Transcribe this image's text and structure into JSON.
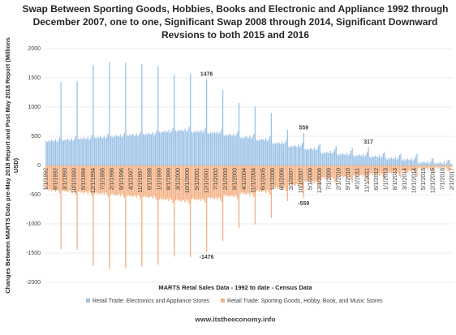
{
  "chart_data": {
    "type": "bar",
    "title": [
      "Swap Between Sporting Goods, Hobbies, Books and Electronic and Appliance 1992 through",
      "December 2007, one to one, Significant Swap 2008 through 2014, Significant Downward",
      "Revsions to both 2015 and 2016"
    ],
    "y_label": [
      "Changes Between MARTS Data pre-May 2018 Report and Post May 2018 Report (Millions",
      "USD)"
    ],
    "x_label": "MARTS Retal Sales Data - 1992 to date - Census Data",
    "footer": "www.itstheeconomy.info",
    "ylim": [
      -2000,
      2000
    ],
    "yticks": [
      -2000,
      -1500,
      -1000,
      -500,
      0,
      500,
      1000,
      1500,
      2000
    ],
    "grid": true,
    "legend": "bottom",
    "categories": [
      "1/1/1992",
      null,
      null,
      null,
      null,
      null,
      null,
      "8/1/1992",
      null,
      null,
      null,
      null,
      null,
      null,
      "3/1/1993",
      null,
      null,
      null,
      null,
      null,
      null,
      "10/1/1993",
      null,
      null,
      null,
      null,
      null,
      null,
      "5/1/1994",
      null,
      null,
      null,
      null,
      null,
      null,
      "12/1/1994",
      null,
      null,
      null,
      null,
      null,
      null,
      "7/1/1995",
      null,
      null,
      null,
      null,
      null,
      null,
      "2/1/1996",
      null,
      null,
      null,
      null,
      null,
      null,
      "9/1/1996",
      null,
      null,
      null,
      null,
      null,
      null,
      "4/1/1997",
      null,
      null,
      null,
      null,
      null,
      null,
      "11/1/1997",
      null,
      null,
      null,
      null,
      null,
      null,
      "6/1/1998",
      null,
      null,
      null,
      null,
      null,
      null,
      "1/1/1999",
      null,
      null,
      null,
      null,
      null,
      null,
      "8/1/1999",
      null,
      null,
      null,
      null,
      null,
      null,
      "3/1/2000",
      null,
      null,
      null,
      null,
      null,
      null,
      "10/1/2000",
      null,
      null,
      null,
      null,
      null,
      null,
      "5/1/2001",
      null,
      null,
      null,
      null,
      null,
      null,
      "12/1/2001",
      null,
      null,
      null,
      null,
      null,
      null,
      "7/1/2002",
      null,
      null,
      null,
      null,
      null,
      null,
      "2/1/2003",
      null,
      null,
      null,
      null,
      null,
      null,
      "9/1/2003",
      null,
      null,
      null,
      null,
      null,
      null,
      "4/1/2004",
      null,
      null,
      null,
      null,
      null,
      null,
      "11/1/2004",
      null,
      null,
      null,
      null,
      null,
      null,
      "6/1/2005",
      null,
      null,
      null,
      null,
      null,
      null,
      "1/1/2006",
      null,
      null,
      null,
      null,
      null,
      null,
      "8/1/2006",
      null,
      null,
      null,
      null,
      null,
      null,
      "3/1/2007",
      null,
      null,
      null,
      null,
      null,
      null,
      "10/1/2007",
      null,
      null,
      null,
      null,
      null,
      null,
      "5/1/2008",
      null,
      null,
      null,
      null,
      null,
      null,
      "12/1/2008",
      null,
      null,
      null,
      null,
      null,
      null,
      "7/1/2009",
      null,
      null,
      null,
      null,
      null,
      null,
      "2/1/2010",
      null,
      null,
      null,
      null,
      null,
      null,
      "9/1/2010",
      null,
      null,
      null,
      null,
      null,
      null,
      "4/1/2011",
      null,
      null,
      null,
      null,
      null,
      null,
      "11/1/2011",
      null,
      null,
      null,
      null,
      null,
      null,
      "6/1/2012",
      null,
      null,
      null,
      null,
      null,
      null,
      "1/1/2013",
      null,
      null,
      null,
      null,
      null,
      null,
      "8/1/2013",
      null,
      null,
      null,
      null,
      null,
      null,
      "3/1/2014",
      null,
      null,
      null,
      null,
      null,
      null,
      "10/1/2014",
      null,
      null,
      null,
      null,
      null,
      null,
      "5/1/2015",
      null,
      null,
      null,
      null,
      null,
      null,
      "12/1/2015",
      null,
      null,
      null,
      null,
      null,
      null,
      "7/1/2016",
      null,
      null,
      null,
      null,
      null,
      null,
      "2/1/2017"
    ],
    "series": [
      {
        "name": "Retail Trade: Electronics and Appliance Stores",
        "color": "#9dc3e6",
        "labeled": [
          119,
          191,
          239
        ],
        "values": [
          420,
          400,
          430,
          410,
          440,
          420,
          410,
          450,
          400,
          430,
          480,
          1430,
          440,
          420,
          450,
          430,
          460,
          440,
          430,
          470,
          420,
          450,
          500,
          1440,
          460,
          440,
          470,
          450,
          480,
          460,
          450,
          490,
          440,
          470,
          520,
          1720,
          480,
          460,
          490,
          470,
          500,
          480,
          470,
          510,
          460,
          490,
          540,
          1770,
          500,
          480,
          510,
          490,
          520,
          500,
          490,
          530,
          480,
          510,
          560,
          1760,
          520,
          500,
          530,
          510,
          540,
          520,
          510,
          550,
          500,
          530,
          580,
          1730,
          540,
          520,
          550,
          530,
          560,
          540,
          530,
          570,
          520,
          550,
          600,
          1700,
          580,
          560,
          590,
          570,
          600,
          580,
          570,
          610,
          560,
          590,
          640,
          1560,
          600,
          580,
          610,
          590,
          620,
          600,
          590,
          630,
          580,
          610,
          660,
          1570,
          580,
          560,
          590,
          570,
          600,
          580,
          570,
          610,
          560,
          590,
          640,
          1476,
          560,
          540,
          570,
          550,
          580,
          560,
          550,
          590,
          540,
          570,
          620,
          1290,
          520,
          500,
          530,
          510,
          540,
          520,
          510,
          550,
          500,
          530,
          580,
          1070,
          480,
          460,
          490,
          470,
          500,
          480,
          470,
          510,
          460,
          490,
          540,
          1010,
          440,
          420,
          450,
          430,
          460,
          440,
          430,
          470,
          420,
          450,
          500,
          900,
          380,
          360,
          390,
          370,
          400,
          380,
          370,
          410,
          360,
          390,
          440,
          610,
          330,
          310,
          340,
          320,
          350,
          330,
          320,
          360,
          310,
          340,
          390,
          559,
          280,
          260,
          290,
          270,
          300,
          280,
          270,
          310,
          260,
          290,
          340,
          380,
          220,
          200,
          230,
          210,
          240,
          220,
          210,
          250,
          200,
          230,
          280,
          330,
          190,
          170,
          200,
          180,
          210,
          190,
          180,
          220,
          170,
          200,
          250,
          300,
          170,
          150,
          180,
          160,
          190,
          170,
          160,
          200,
          150,
          180,
          230,
          317,
          150,
          130,
          160,
          140,
          170,
          150,
          140,
          180,
          130,
          160,
          210,
          230,
          120,
          100,
          130,
          110,
          140,
          120,
          110,
          150,
          100,
          130,
          180,
          200,
          100,
          80,
          110,
          90,
          120,
          100,
          90,
          130,
          80,
          110,
          160,
          200,
          50,
          30,
          60,
          40,
          70,
          50,
          40,
          80,
          30,
          60,
          110,
          120,
          40,
          20,
          50,
          30,
          60,
          40,
          30,
          70,
          20,
          50,
          100,
          90,
          30,
          20
        ]
      },
      {
        "name": "Retail Trade: Sporting Goods, Hobby, Book, and Music Stores",
        "color": "#f4b183",
        "labeled": [
          119,
          191
        ],
        "values": [
          -420,
          -400,
          -430,
          -410,
          -440,
          -420,
          -410,
          -450,
          -400,
          -430,
          -480,
          -1430,
          -440,
          -420,
          -450,
          -430,
          -460,
          -440,
          -430,
          -470,
          -420,
          -450,
          -500,
          -1440,
          -460,
          -440,
          -470,
          -450,
          -480,
          -460,
          -450,
          -490,
          -440,
          -470,
          -520,
          -1720,
          -480,
          -460,
          -490,
          -470,
          -500,
          -480,
          -470,
          -510,
          -460,
          -490,
          -540,
          -1770,
          -500,
          -480,
          -510,
          -490,
          -520,
          -500,
          -490,
          -530,
          -480,
          -510,
          -560,
          -1760,
          -520,
          -500,
          -530,
          -510,
          -540,
          -520,
          -510,
          -550,
          -500,
          -530,
          -580,
          -1730,
          -540,
          -520,
          -550,
          -530,
          -560,
          -540,
          -530,
          -570,
          -520,
          -550,
          -600,
          -1700,
          -580,
          -560,
          -590,
          -570,
          -600,
          -580,
          -570,
          -610,
          -560,
          -590,
          -640,
          -1560,
          -600,
          -580,
          -610,
          -590,
          -620,
          -600,
          -590,
          -630,
          -580,
          -610,
          -660,
          -1570,
          -580,
          -560,
          -590,
          -570,
          -600,
          -580,
          -570,
          -610,
          -560,
          -590,
          -640,
          -1476,
          -560,
          -540,
          -570,
          -550,
          -580,
          -560,
          -550,
          -590,
          -540,
          -570,
          -620,
          -1290,
          -520,
          -500,
          -530,
          -510,
          -540,
          -520,
          -510,
          -550,
          -500,
          -530,
          -580,
          -1070,
          -480,
          -460,
          -490,
          -470,
          -500,
          -480,
          -470,
          -510,
          -460,
          -490,
          -540,
          -1010,
          -440,
          -420,
          -450,
          -430,
          -460,
          -440,
          -430,
          -470,
          -420,
          -450,
          -500,
          -900,
          -380,
          -360,
          -390,
          -370,
          -400,
          -380,
          -370,
          -410,
          -360,
          -390,
          -440,
          -610,
          -330,
          -310,
          -340,
          -320,
          -350,
          -330,
          -320,
          -360,
          -310,
          -340,
          -390,
          -559,
          -280,
          -260,
          -290,
          -270,
          -300,
          -280,
          -270,
          -310,
          -260,
          -290,
          -340,
          -380,
          -220,
          -200,
          -230,
          -210,
          -240,
          -220,
          -210,
          -250,
          -200,
          -230,
          -280,
          -330,
          -190,
          -170,
          -200,
          -180,
          -210,
          -190,
          -180,
          -220,
          -170,
          -200,
          -250,
          -300,
          -170,
          -150,
          -180,
          -160,
          -190,
          -170,
          -160,
          -200,
          -150,
          -180,
          -230,
          -317,
          -150,
          -130,
          -160,
          -140,
          -170,
          -150,
          -140,
          -180,
          -130,
          -160,
          -210,
          -230,
          -120,
          -100,
          -130,
          -110,
          -140,
          -120,
          -110,
          -150,
          -100,
          -130,
          -180,
          -200,
          -100,
          -80,
          -110,
          -90,
          -120,
          -100,
          -90,
          -130,
          -80,
          -110,
          -160,
          -200,
          -50,
          -30,
          -60,
          -40,
          -70,
          -50,
          -40,
          -80,
          -30,
          -60,
          -110,
          -120,
          -40,
          -20,
          -50,
          -30,
          -60,
          -40,
          -30,
          -70,
          -20,
          -50,
          -100,
          -90,
          -30,
          -20
        ]
      }
    ]
  }
}
